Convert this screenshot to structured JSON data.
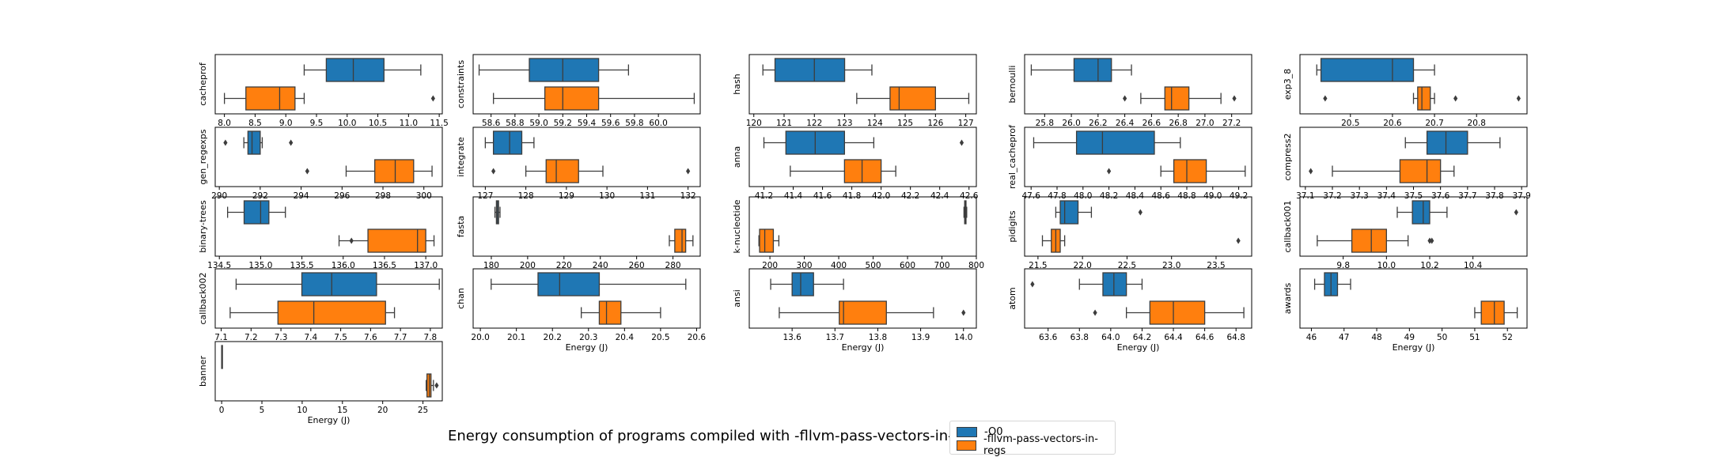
{
  "title": "Energy consumption of programs compiled with -fllvm-pass-vectors-in-regs",
  "legend": {
    "items": [
      {
        "label": "-O0",
        "color": "#1f77b4"
      },
      {
        "label": "-fllvm-pass-vectors-in-regs",
        "color": "#ff7f0e"
      }
    ]
  },
  "chart_data": [
    {
      "type": "box",
      "program": "cacheprof",
      "xlabel": "",
      "xlim": [
        7.85,
        11.55
      ],
      "ticks": [
        8.0,
        8.5,
        9.0,
        9.5,
        10.0,
        10.5,
        11.0,
        11.5
      ],
      "tick_labels": [
        "8.0",
        "8.5",
        "9.0",
        "9.5",
        "10.0",
        "10.5",
        "11.0",
        "11.5"
      ],
      "boxes": [
        {
          "series": "-O0",
          "whislo": 9.3,
          "q1": 9.66,
          "med": 10.1,
          "q3": 10.6,
          "whishi": 11.2,
          "fliers": []
        },
        {
          "series": "-fllvm-pass-vectors-in-regs",
          "whislo": 8.0,
          "q1": 8.35,
          "med": 8.9,
          "q3": 9.15,
          "whishi": 9.3,
          "fliers": [
            11.4
          ]
        }
      ]
    },
    {
      "type": "box",
      "program": "constraints",
      "xlabel": "",
      "xlim": [
        58.45,
        60.35
      ],
      "ticks": [
        58.6,
        58.8,
        59.0,
        59.2,
        59.4,
        59.6,
        59.8,
        60.0
      ],
      "tick_labels": [
        "58.6",
        "58.8",
        "59.0",
        "59.2",
        "59.4",
        "59.6",
        "59.8",
        "60.0"
      ],
      "boxes": [
        {
          "series": "-O0",
          "whislo": 58.5,
          "q1": 58.92,
          "med": 59.2,
          "q3": 59.5,
          "whishi": 59.75,
          "fliers": []
        },
        {
          "series": "-fllvm-pass-vectors-in-regs",
          "whislo": 58.62,
          "q1": 59.05,
          "med": 59.2,
          "q3": 59.5,
          "whishi": 60.3,
          "fliers": []
        }
      ]
    },
    {
      "type": "box",
      "program": "hash",
      "xlabel": "",
      "xlim": [
        119.85,
        127.35
      ],
      "ticks": [
        120,
        121,
        122,
        123,
        124,
        125,
        126,
        127
      ],
      "tick_labels": [
        "120",
        "121",
        "122",
        "123",
        "124",
        "125",
        "126",
        "127"
      ],
      "boxes": [
        {
          "series": "-O0",
          "whislo": 120.3,
          "q1": 120.7,
          "med": 122.0,
          "q3": 123.0,
          "whishi": 123.9,
          "fliers": []
        },
        {
          "series": "-fllvm-pass-vectors-in-regs",
          "whislo": 123.4,
          "q1": 124.5,
          "med": 124.8,
          "q3": 126.0,
          "whishi": 127.1,
          "fliers": []
        }
      ]
    },
    {
      "type": "box",
      "program": "bernoulli",
      "xlabel": "",
      "xlim": [
        25.65,
        27.35
      ],
      "ticks": [
        25.8,
        26.0,
        26.2,
        26.4,
        26.6,
        26.8,
        27.0,
        27.2
      ],
      "tick_labels": [
        "25.8",
        "26.0",
        "26.2",
        "26.4",
        "26.6",
        "26.8",
        "27.0",
        "27.2"
      ],
      "boxes": [
        {
          "series": "-O0",
          "whislo": 25.7,
          "q1": 26.02,
          "med": 26.2,
          "q3": 26.3,
          "whishi": 26.45,
          "fliers": []
        },
        {
          "series": "-fllvm-pass-vectors-in-regs",
          "whislo": 26.52,
          "q1": 26.7,
          "med": 26.75,
          "q3": 26.88,
          "whishi": 27.12,
          "fliers": [
            26.4,
            27.22
          ]
        }
      ]
    },
    {
      "type": "box",
      "program": "exp3_8",
      "xlabel": "",
      "xlim": [
        20.38,
        20.92
      ],
      "ticks": [
        20.5,
        20.6,
        20.7,
        20.8
      ],
      "tick_labels": [
        "20.5",
        "20.6",
        "20.7",
        "20.8"
      ],
      "boxes": [
        {
          "series": "-O0",
          "whislo": 20.42,
          "q1": 20.43,
          "med": 20.6,
          "q3": 20.65,
          "whishi": 20.7,
          "fliers": []
        },
        {
          "series": "-fllvm-pass-vectors-in-regs",
          "whislo": 20.65,
          "q1": 20.66,
          "med": 20.67,
          "q3": 20.69,
          "whishi": 20.7,
          "fliers": [
            20.44,
            20.75,
            20.9
          ]
        }
      ]
    },
    {
      "type": "box",
      "program": "gen_regexps",
      "xlabel": "",
      "xlim": [
        289.8,
        300.9
      ],
      "ticks": [
        290,
        292,
        294,
        296,
        298,
        300
      ],
      "tick_labels": [
        "290",
        "292",
        "294",
        "296",
        "298",
        "300"
      ],
      "boxes": [
        {
          "series": "-O0",
          "whislo": 291.2,
          "q1": 291.4,
          "med": 291.6,
          "q3": 292.0,
          "whishi": 292.1,
          "fliers": [
            290.3,
            293.5
          ]
        },
        {
          "series": "-fllvm-pass-vectors-in-regs",
          "whislo": 296.2,
          "q1": 297.6,
          "med": 298.6,
          "q3": 299.5,
          "whishi": 300.4,
          "fliers": [
            294.3
          ]
        }
      ]
    },
    {
      "type": "box",
      "program": "integrate",
      "xlabel": "",
      "xlim": [
        126.7,
        132.3
      ],
      "ticks": [
        127,
        128,
        129,
        130,
        131,
        132
      ],
      "tick_labels": [
        "127",
        "128",
        "129",
        "130",
        "131",
        "132"
      ],
      "boxes": [
        {
          "series": "-O0",
          "whislo": 127.0,
          "q1": 127.2,
          "med": 127.6,
          "q3": 127.9,
          "whishi": 128.2,
          "fliers": []
        },
        {
          "series": "-fllvm-pass-vectors-in-regs",
          "whislo": 128.0,
          "q1": 128.5,
          "med": 128.75,
          "q3": 129.3,
          "whishi": 129.9,
          "fliers": [
            127.2,
            132.0
          ]
        }
      ]
    },
    {
      "type": "box",
      "program": "anna",
      "xlabel": "",
      "xlim": [
        41.1,
        42.65
      ],
      "ticks": [
        41.2,
        41.4,
        41.6,
        41.8,
        42.0,
        42.2,
        42.4,
        42.6
      ],
      "tick_labels": [
        "41.2",
        "41.4",
        "41.6",
        "41.8",
        "42.0",
        "42.2",
        "42.4",
        "42.6"
      ],
      "boxes": [
        {
          "series": "-O0",
          "whislo": 41.2,
          "q1": 41.35,
          "med": 41.55,
          "q3": 41.75,
          "whishi": 41.95,
          "fliers": [
            42.55
          ]
        },
        {
          "series": "-fllvm-pass-vectors-in-regs",
          "whislo": 41.38,
          "q1": 41.75,
          "med": 41.87,
          "q3": 42.0,
          "whishi": 42.1,
          "fliers": []
        }
      ]
    },
    {
      "type": "box",
      "program": "real_cacheprof",
      "xlabel": "",
      "xlim": [
        47.55,
        49.3
      ],
      "ticks": [
        47.6,
        47.8,
        48.0,
        48.2,
        48.4,
        48.6,
        48.8,
        49.0,
        49.2
      ],
      "tick_labels": [
        "47.6",
        "47.8",
        "48.0",
        "48.2",
        "48.4",
        "48.6",
        "48.8",
        "49.0",
        "49.2"
      ],
      "boxes": [
        {
          "series": "-O0",
          "whislo": 47.62,
          "q1": 47.95,
          "med": 48.15,
          "q3": 48.55,
          "whishi": 48.75,
          "fliers": []
        },
        {
          "series": "-fllvm-pass-vectors-in-regs",
          "whislo": 48.6,
          "q1": 48.7,
          "med": 48.8,
          "q3": 48.95,
          "whishi": 49.25,
          "fliers": [
            48.2
          ]
        }
      ]
    },
    {
      "type": "box",
      "program": "compress2",
      "xlabel": "",
      "xlim": [
        37.08,
        37.92
      ],
      "ticks": [
        37.1,
        37.2,
        37.3,
        37.4,
        37.5,
        37.6,
        37.7,
        37.8,
        37.9
      ],
      "tick_labels": [
        "37.1",
        "37.2",
        "37.3",
        "37.4",
        "37.5",
        "37.6",
        "37.7",
        "37.8",
        "37.9"
      ],
      "boxes": [
        {
          "series": "-O0",
          "whislo": 37.47,
          "q1": 37.55,
          "med": 37.62,
          "q3": 37.7,
          "whishi": 37.82,
          "fliers": []
        },
        {
          "series": "-fllvm-pass-vectors-in-regs",
          "whislo": 37.2,
          "q1": 37.45,
          "med": 37.55,
          "q3": 37.6,
          "whishi": 37.65,
          "fliers": [
            37.12
          ]
        }
      ]
    },
    {
      "type": "box",
      "program": "binary-trees",
      "xlabel": "",
      "xlim": [
        134.45,
        137.2
      ],
      "ticks": [
        134.5,
        135.0,
        135.5,
        136.0,
        136.5,
        137.0
      ],
      "tick_labels": [
        "134.5",
        "135.0",
        "135.5",
        "136.0",
        "136.5",
        "137.0"
      ],
      "boxes": [
        {
          "series": "-O0",
          "whislo": 134.6,
          "q1": 134.8,
          "med": 135.0,
          "q3": 135.1,
          "whishi": 135.3,
          "fliers": []
        },
        {
          "series": "-fllvm-pass-vectors-in-regs",
          "whislo": 135.95,
          "q1": 136.3,
          "med": 136.9,
          "q3": 137.0,
          "whishi": 137.1,
          "fliers": [
            136.1
          ]
        }
      ]
    },
    {
      "type": "box",
      "program": "fasta",
      "xlabel": "",
      "xlim": [
        170,
        295
      ],
      "ticks": [
        180,
        200,
        220,
        240,
        260,
        280
      ],
      "tick_labels": [
        "180",
        "200",
        "220",
        "240",
        "260",
        "280"
      ],
      "boxes": [
        {
          "series": "-O0",
          "whislo": 182,
          "q1": 182.8,
          "med": 183.4,
          "q3": 184.0,
          "whishi": 184.8,
          "fliers": []
        },
        {
          "series": "-fllvm-pass-vectors-in-regs",
          "whislo": 278,
          "q1": 281,
          "med": 285,
          "q3": 287,
          "whishi": 291,
          "fliers": []
        }
      ]
    },
    {
      "type": "box",
      "program": "k-nucleotide",
      "xlabel": "",
      "xlim": [
        140,
        800
      ],
      "ticks": [
        200,
        300,
        400,
        500,
        600,
        700,
        800
      ],
      "tick_labels": [
        "200",
        "300",
        "400",
        "500",
        "600",
        "700",
        "800"
      ],
      "boxes": [
        {
          "series": "-O0",
          "whislo": 764,
          "q1": 766,
          "med": 768,
          "q3": 770,
          "whishi": 772,
          "fliers": []
        },
        {
          "series": "-fllvm-pass-vectors-in-regs",
          "whislo": 168,
          "q1": 170,
          "med": 185,
          "q3": 210,
          "whishi": 226,
          "fliers": []
        }
      ]
    },
    {
      "type": "box",
      "program": "pidigits",
      "xlabel": "",
      "xlim": [
        21.35,
        23.9
      ],
      "ticks": [
        21.5,
        22.0,
        22.5,
        23.0,
        23.5
      ],
      "tick_labels": [
        "21.5",
        "22.0",
        "22.5",
        "23.0",
        "23.5"
      ],
      "boxes": [
        {
          "series": "-O0",
          "whislo": 21.7,
          "q1": 21.75,
          "med": 21.8,
          "q3": 21.95,
          "whishi": 22.1,
          "fliers": [
            22.65
          ]
        },
        {
          "series": "-fllvm-pass-vectors-in-regs",
          "whislo": 21.55,
          "q1": 21.65,
          "med": 21.7,
          "q3": 21.75,
          "whishi": 21.8,
          "fliers": [
            23.75
          ]
        }
      ]
    },
    {
      "type": "box",
      "program": "callback001",
      "xlabel": "",
      "xlim": [
        9.6,
        10.65
      ],
      "ticks": [
        9.8,
        10.0,
        10.2,
        10.4
      ],
      "tick_labels": [
        "9.8",
        "10.0",
        "10.2",
        "10.4"
      ],
      "boxes": [
        {
          "series": "-O0",
          "whislo": 10.05,
          "q1": 10.12,
          "med": 10.17,
          "q3": 10.2,
          "whishi": 10.28,
          "fliers": [
            10.6
          ]
        },
        {
          "series": "-fllvm-pass-vectors-in-regs",
          "whislo": 9.68,
          "q1": 9.84,
          "med": 9.93,
          "q3": 10.0,
          "whishi": 10.1,
          "fliers": [
            10.2,
            10.21
          ]
        }
      ]
    },
    {
      "type": "box",
      "program": "callback002",
      "xlabel": "",
      "xlim": [
        7.08,
        7.84
      ],
      "ticks": [
        7.1,
        7.2,
        7.3,
        7.4,
        7.5,
        7.6,
        7.7,
        7.8
      ],
      "tick_labels": [
        "7.1",
        "7.2",
        "7.3",
        "7.4",
        "7.5",
        "7.6",
        "7.7",
        "7.8"
      ],
      "boxes": [
        {
          "series": "-O0",
          "whislo": 7.15,
          "q1": 7.37,
          "med": 7.47,
          "q3": 7.62,
          "whishi": 7.83,
          "fliers": []
        },
        {
          "series": "-fllvm-pass-vectors-in-regs",
          "whislo": 7.13,
          "q1": 7.29,
          "med": 7.41,
          "q3": 7.65,
          "whishi": 7.68,
          "fliers": []
        }
      ]
    },
    {
      "type": "box",
      "program": "chan",
      "xlabel": "Energy (J)",
      "xlim": [
        19.98,
        20.61
      ],
      "ticks": [
        20.0,
        20.1,
        20.2,
        20.3,
        20.4,
        20.5,
        20.6
      ],
      "tick_labels": [
        "20.0",
        "20.1",
        "20.2",
        "20.3",
        "20.4",
        "20.5",
        "20.6"
      ],
      "boxes": [
        {
          "series": "-O0",
          "whislo": 20.03,
          "q1": 20.16,
          "med": 20.22,
          "q3": 20.33,
          "whishi": 20.57,
          "fliers": []
        },
        {
          "series": "-fllvm-pass-vectors-in-regs",
          "whislo": 20.28,
          "q1": 20.33,
          "med": 20.35,
          "q3": 20.39,
          "whishi": 20.5,
          "fliers": []
        }
      ]
    },
    {
      "type": "box",
      "program": "ansi",
      "xlabel": "Energy (J)",
      "xlim": [
        13.5,
        14.03
      ],
      "ticks": [
        13.6,
        13.7,
        13.8,
        13.9,
        14.0
      ],
      "tick_labels": [
        "13.6",
        "13.7",
        "13.8",
        "13.9",
        "14.0"
      ],
      "boxes": [
        {
          "series": "-O0",
          "whislo": 13.55,
          "q1": 13.6,
          "med": 13.62,
          "q3": 13.65,
          "whishi": 13.72,
          "fliers": []
        },
        {
          "series": "-fllvm-pass-vectors-in-regs",
          "whislo": 13.57,
          "q1": 13.71,
          "med": 13.72,
          "q3": 13.82,
          "whishi": 13.93,
          "fliers": [
            14.0
          ]
        }
      ]
    },
    {
      "type": "box",
      "program": "atom",
      "xlabel": "Energy (J)",
      "xlim": [
        63.45,
        64.9
      ],
      "ticks": [
        63.6,
        63.8,
        64.0,
        64.2,
        64.4,
        64.6,
        64.8
      ],
      "tick_labels": [
        "63.6",
        "63.8",
        "64.0",
        "64.2",
        "64.4",
        "64.6",
        "64.8"
      ],
      "boxes": [
        {
          "series": "-O0",
          "whislo": 63.8,
          "q1": 63.95,
          "med": 64.02,
          "q3": 64.1,
          "whishi": 64.2,
          "fliers": [
            63.5
          ]
        },
        {
          "series": "-fllvm-pass-vectors-in-regs",
          "whislo": 64.1,
          "q1": 64.25,
          "med": 64.4,
          "q3": 64.6,
          "whishi": 64.85,
          "fliers": [
            63.9
          ]
        }
      ]
    },
    {
      "type": "box",
      "program": "awards",
      "xlabel": "Energy (J)",
      "xlim": [
        45.65,
        52.6
      ],
      "ticks": [
        46,
        47,
        48,
        49,
        50,
        51,
        52
      ],
      "tick_labels": [
        "46",
        "47",
        "48",
        "49",
        "50",
        "51",
        "52"
      ],
      "boxes": [
        {
          "series": "-O0",
          "whislo": 46.1,
          "q1": 46.4,
          "med": 46.6,
          "q3": 46.8,
          "whishi": 47.2,
          "fliers": []
        },
        {
          "series": "-fllvm-pass-vectors-in-regs",
          "whislo": 51.0,
          "q1": 51.2,
          "med": 51.6,
          "q3": 51.9,
          "whishi": 52.3,
          "fliers": []
        }
      ]
    },
    {
      "type": "box",
      "program": "banner",
      "xlabel": "Energy (J)",
      "xlim": [
        -0.8,
        27.4
      ],
      "ticks": [
        0,
        5,
        10,
        15,
        20,
        25
      ],
      "tick_labels": [
        "0",
        "5",
        "10",
        "15",
        "20",
        "25"
      ],
      "boxes": [
        {
          "series": "-O0",
          "whislo": 0,
          "q1": 0,
          "med": 0,
          "q3": 0,
          "whishi": 0,
          "fliers": []
        },
        {
          "series": "-fllvm-pass-vectors-in-regs",
          "whislo": 25.4,
          "q1": 25.5,
          "med": 25.8,
          "q3": 26.0,
          "whishi": 26.3,
          "fliers": [
            26.7
          ]
        }
      ]
    }
  ]
}
